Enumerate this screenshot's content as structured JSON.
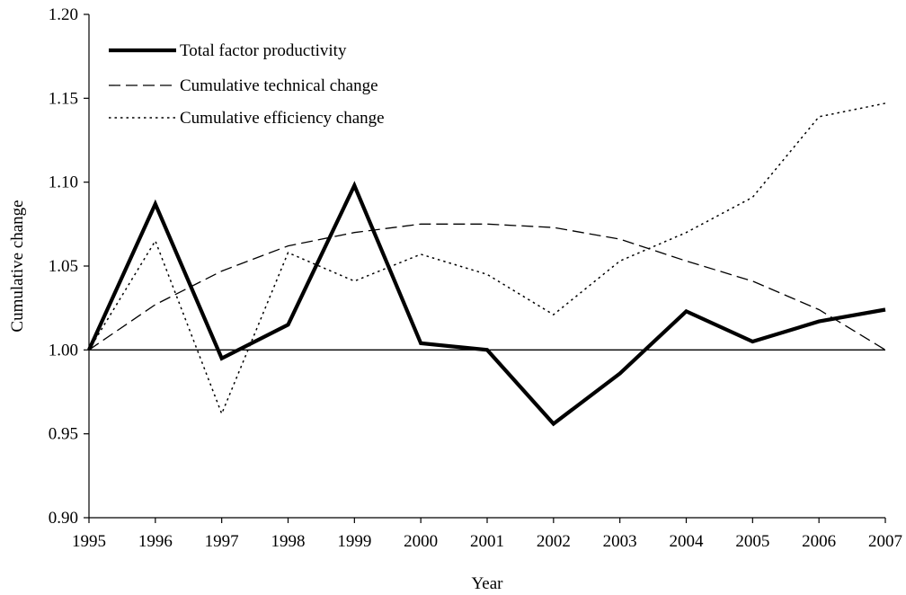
{
  "chart_data": {
    "type": "line",
    "xlabel": "Year",
    "ylabel": "Cumulative change",
    "ylim": [
      0.9,
      1.2
    ],
    "yticks": [
      "0.90",
      "0.95",
      "1.00",
      "1.05",
      "1.10",
      "1.15",
      "1.20"
    ],
    "x": [
      "1995",
      "1996",
      "1997",
      "1998",
      "1999",
      "2000",
      "2001",
      "2002",
      "2003",
      "2004",
      "2005",
      "2006",
      "2007"
    ],
    "reference_line": 1.0,
    "grid": false,
    "legend_position": "top-left",
    "series": [
      {
        "name": "Total factor productivity",
        "style": "solid-thick",
        "color": "#000000",
        "values": [
          1.0,
          1.087,
          0.995,
          1.015,
          1.098,
          1.004,
          1.0,
          0.956,
          0.986,
          1.023,
          1.005,
          1.017,
          1.024
        ]
      },
      {
        "name": "Cumulative technical change",
        "style": "dashed",
        "color": "#000000",
        "values": [
          1.0,
          1.027,
          1.047,
          1.062,
          1.07,
          1.075,
          1.075,
          1.073,
          1.066,
          1.053,
          1.041,
          1.024,
          1.0
        ]
      },
      {
        "name": "Cumulative efficiency change",
        "style": "dotted",
        "color": "#000000",
        "values": [
          1.0,
          1.065,
          0.962,
          1.058,
          1.041,
          1.057,
          1.045,
          1.021,
          1.053,
          1.07,
          1.091,
          1.139,
          1.147
        ]
      }
    ]
  }
}
